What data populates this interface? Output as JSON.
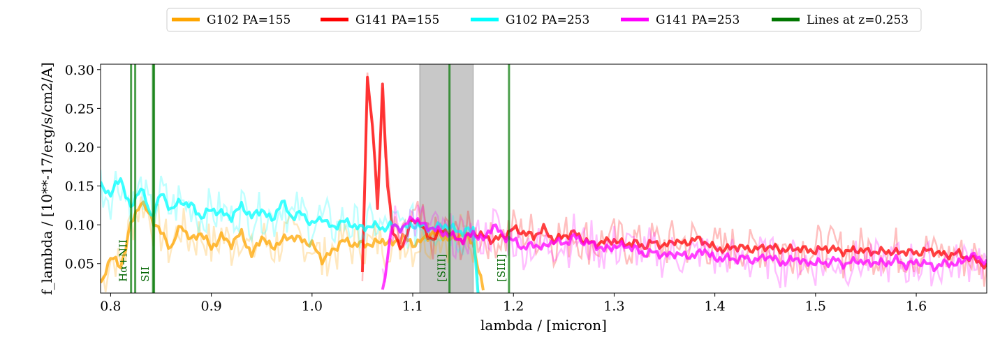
{
  "chart_data": {
    "type": "line",
    "xlabel": "lambda / [micron]",
    "ylabel": "f_lambda / [10**-17/erg/s/cm2/A]",
    "xlim": [
      0.79,
      1.67
    ],
    "ylim": [
      0.012,
      0.307
    ],
    "xticks": [
      0.8,
      0.9,
      1.0,
      1.1,
      1.2,
      1.3,
      1.4,
      1.5,
      1.6
    ],
    "xtick_labels": [
      "0.8",
      "0.9",
      "1.0",
      "1.1",
      "1.2",
      "1.3",
      "1.4",
      "1.5",
      "1.6"
    ],
    "yticks": [
      0.05,
      0.1,
      0.15,
      0.2,
      0.25,
      0.3
    ],
    "ytick_labels": [
      "0.05",
      "0.10",
      "0.15",
      "0.20",
      "0.25",
      "0.30"
    ],
    "grid": false,
    "legend_position": "top-center",
    "shaded_region": {
      "x": [
        1.107,
        1.16
      ],
      "color": "#c8c8c8"
    },
    "series": [
      {
        "name": "G102 PA=155",
        "color": "#FFA500",
        "x": [
          0.79,
          0.8,
          0.81,
          0.82,
          0.83,
          0.84,
          0.85,
          0.86,
          0.87,
          0.88,
          0.89,
          0.9,
          0.91,
          0.92,
          0.93,
          0.94,
          0.95,
          0.96,
          0.97,
          0.98,
          0.99,
          1.0,
          1.01,
          1.02,
          1.03,
          1.04,
          1.05,
          1.06,
          1.07,
          1.08,
          1.09,
          1.1,
          1.11,
          1.12,
          1.13,
          1.14,
          1.15,
          1.16,
          1.17
        ],
        "values": [
          0.02,
          0.06,
          0.045,
          0.1,
          0.13,
          0.11,
          0.09,
          0.07,
          0.1,
          0.08,
          0.09,
          0.07,
          0.085,
          0.075,
          0.09,
          0.06,
          0.085,
          0.07,
          0.08,
          0.085,
          0.08,
          0.075,
          0.055,
          0.065,
          0.08,
          0.075,
          0.075,
          0.075,
          0.08,
          0.075,
          0.085,
          0.075,
          0.08,
          0.09,
          0.085,
          0.08,
          0.09,
          0.075,
          0.015
        ]
      },
      {
        "name": "G141 PA=155",
        "color": "#FF0000",
        "x": [
          1.05,
          1.055,
          1.06,
          1.065,
          1.07,
          1.075,
          1.08,
          1.09,
          1.1,
          1.11,
          1.12,
          1.13,
          1.14,
          1.15,
          1.16,
          1.17,
          1.18,
          1.19,
          1.2,
          1.21,
          1.22,
          1.23,
          1.24,
          1.25,
          1.26,
          1.27,
          1.28,
          1.29,
          1.3,
          1.31,
          1.32,
          1.33,
          1.34,
          1.35,
          1.36,
          1.37,
          1.38,
          1.39,
          1.4,
          1.41,
          1.42,
          1.43,
          1.44,
          1.45,
          1.46,
          1.47,
          1.48,
          1.49,
          1.5,
          1.51,
          1.52,
          1.53,
          1.54,
          1.55,
          1.56,
          1.57,
          1.58,
          1.59,
          1.6,
          1.61,
          1.62,
          1.63,
          1.64,
          1.65,
          1.66,
          1.67
        ],
        "values": [
          0.035,
          0.29,
          0.23,
          0.12,
          0.28,
          0.15,
          0.09,
          0.07,
          0.11,
          0.095,
          0.08,
          0.095,
          0.085,
          0.08,
          0.09,
          0.085,
          0.08,
          0.085,
          0.095,
          0.09,
          0.085,
          0.095,
          0.08,
          0.085,
          0.09,
          0.08,
          0.075,
          0.078,
          0.08,
          0.075,
          0.077,
          0.072,
          0.078,
          0.072,
          0.08,
          0.075,
          0.082,
          0.078,
          0.07,
          0.068,
          0.072,
          0.07,
          0.068,
          0.072,
          0.07,
          0.067,
          0.07,
          0.068,
          0.066,
          0.07,
          0.068,
          0.065,
          0.068,
          0.066,
          0.065,
          0.066,
          0.064,
          0.066,
          0.063,
          0.067,
          0.065,
          0.06,
          0.064,
          0.058,
          0.055,
          0.045
        ]
      },
      {
        "name": "G102 PA=253",
        "color": "#00FFFF",
        "x": [
          0.79,
          0.8,
          0.81,
          0.82,
          0.83,
          0.84,
          0.85,
          0.86,
          0.87,
          0.88,
          0.89,
          0.9,
          0.91,
          0.92,
          0.93,
          0.94,
          0.95,
          0.96,
          0.97,
          0.98,
          0.99,
          1.0,
          1.01,
          1.02,
          1.03,
          1.04,
          1.05,
          1.06,
          1.07,
          1.08,
          1.09,
          1.1,
          1.11,
          1.12,
          1.13,
          1.14,
          1.15,
          1.16,
          1.165
        ],
        "values": [
          0.15,
          0.14,
          0.16,
          0.12,
          0.15,
          0.11,
          0.14,
          0.12,
          0.13,
          0.125,
          0.11,
          0.12,
          0.115,
          0.11,
          0.125,
          0.11,
          0.12,
          0.105,
          0.13,
          0.11,
          0.115,
          0.1,
          0.11,
          0.095,
          0.105,
          0.1,
          0.095,
          0.1,
          0.095,
          0.1,
          0.095,
          0.1,
          0.098,
          0.095,
          0.1,
          0.095,
          0.09,
          0.095,
          0.012
        ]
      },
      {
        "name": "G141 PA=253",
        "color": "#FF00FF",
        "x": [
          1.07,
          1.08,
          1.09,
          1.1,
          1.11,
          1.12,
          1.13,
          1.14,
          1.15,
          1.16,
          1.17,
          1.18,
          1.19,
          1.2,
          1.21,
          1.22,
          1.23,
          1.24,
          1.25,
          1.26,
          1.27,
          1.28,
          1.29,
          1.3,
          1.31,
          1.32,
          1.33,
          1.34,
          1.35,
          1.36,
          1.37,
          1.38,
          1.39,
          1.4,
          1.41,
          1.42,
          1.43,
          1.44,
          1.45,
          1.46,
          1.47,
          1.48,
          1.49,
          1.5,
          1.51,
          1.52,
          1.53,
          1.54,
          1.55,
          1.56,
          1.57,
          1.58,
          1.59,
          1.6,
          1.61,
          1.62,
          1.63,
          1.64,
          1.65,
          1.66,
          1.67
        ],
        "values": [
          0.015,
          0.1,
          0.095,
          0.11,
          0.1,
          0.095,
          0.09,
          0.085,
          0.08,
          0.09,
          0.08,
          0.1,
          0.085,
          0.08,
          0.07,
          0.075,
          0.07,
          0.08,
          0.075,
          0.085,
          0.078,
          0.075,
          0.068,
          0.072,
          0.073,
          0.07,
          0.062,
          0.065,
          0.06,
          0.063,
          0.06,
          0.06,
          0.068,
          0.055,
          0.058,
          0.055,
          0.058,
          0.053,
          0.06,
          0.055,
          0.05,
          0.058,
          0.05,
          0.052,
          0.05,
          0.055,
          0.048,
          0.055,
          0.05,
          0.052,
          0.05,
          0.055,
          0.048,
          0.052,
          0.05,
          0.045,
          0.052,
          0.048,
          0.058,
          0.06,
          0.05
        ]
      }
    ],
    "emission_lines": {
      "legend_label": "Lines at z=0.253",
      "color": "#007700",
      "lines": [
        {
          "x": 0.8203,
          "label": "Hα+NII"
        },
        {
          "x": 0.8244,
          "label": ""
        },
        {
          "x": 0.8421,
          "label": "SII"
        },
        {
          "x": 0.8431,
          "label": ""
        },
        {
          "x": 1.1365,
          "label": "[SIII]"
        },
        {
          "x": 1.1956,
          "label": "[SIII]"
        }
      ]
    }
  }
}
